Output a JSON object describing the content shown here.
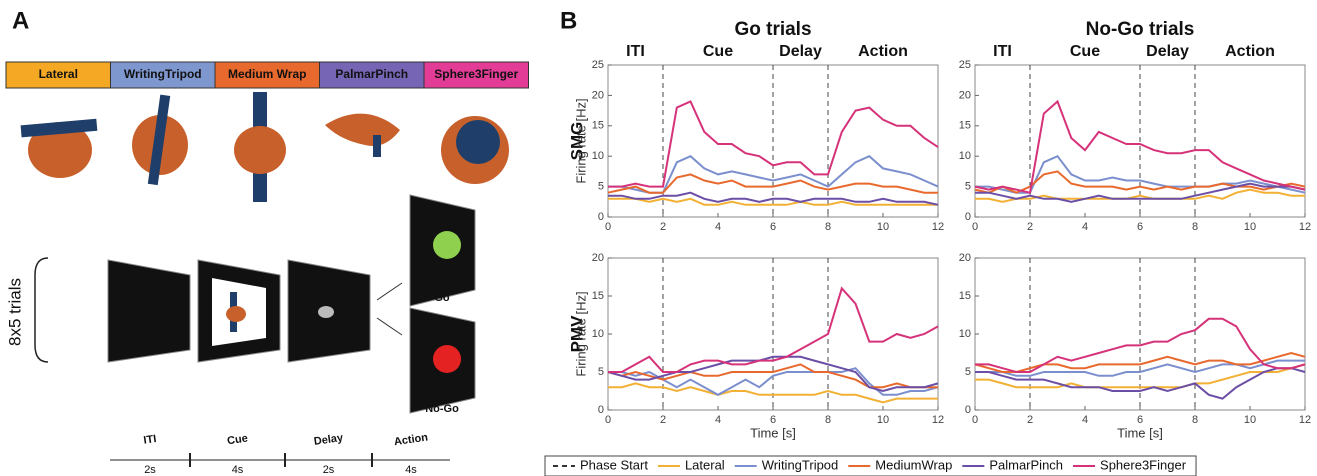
{
  "panel_a": {
    "label": "A",
    "grasps": [
      {
        "name": "Lateral",
        "color": "#f4a823"
      },
      {
        "name": "WritingTripod",
        "color": "#7f97cf"
      },
      {
        "name": "Medium Wrap",
        "color": "#e8692d"
      },
      {
        "name": "PalmarPinch",
        "color": "#7565b4"
      },
      {
        "name": "Sphere3Finger",
        "color": "#e23c96"
      }
    ],
    "trials": "8x5 trials",
    "go": "Go",
    "nogo": "No-Go",
    "timeline": [
      {
        "phase": "ITI",
        "duration": "2s"
      },
      {
        "phase": "Cue",
        "duration": "4s"
      },
      {
        "phase": "Delay",
        "duration": "2s"
      },
      {
        "phase": "Action",
        "duration": "4s"
      }
    ]
  },
  "figure": {
    "label": "B",
    "columns": [
      {
        "title": "Go trials",
        "color": "#22a04b"
      },
      {
        "title": "No-Go trials",
        "color": "#e0284b"
      }
    ],
    "rows": [
      "SMG",
      "PMV"
    ],
    "phases": [
      "ITI",
      "Cue",
      "Delay",
      "Action"
    ],
    "phase_start_label": "Phase Start"
  },
  "chart_data": [
    {
      "type": "line",
      "ylabel": "Firing rate [Hz]",
      "x": [
        0,
        0.5,
        1,
        1.5,
        2,
        2.5,
        3,
        3.5,
        4,
        4.5,
        5,
        5.5,
        6,
        6.5,
        7,
        7.5,
        8,
        8.5,
        9,
        9.5,
        10,
        10.5,
        11,
        11.5,
        12
      ],
      "xlim": [
        0,
        12
      ],
      "xticks": [
        0,
        2,
        4,
        6,
        8,
        10,
        12
      ],
      "ylim": [
        0,
        25
      ],
      "yticks": [
        0,
        5,
        10,
        15,
        20,
        25
      ],
      "phase_starts": [
        2,
        6,
        8
      ],
      "series": [
        {
          "name": "Lateral",
          "color": "#f2b134",
          "values": [
            3,
            3,
            3,
            2.5,
            3,
            2.5,
            3,
            2,
            2,
            2.5,
            2,
            2,
            2,
            2,
            2.5,
            2,
            2,
            2.5,
            2,
            2,
            2,
            2,
            2,
            2,
            2
          ]
        },
        {
          "name": "WritingTripod",
          "color": "#7b8fce",
          "values": [
            5,
            5,
            4.5,
            4,
            4,
            9,
            10,
            8,
            7,
            7.5,
            7,
            6.5,
            6,
            6.5,
            7,
            6,
            5,
            7,
            9,
            10,
            8,
            7.5,
            7,
            6,
            5
          ]
        },
        {
          "name": "MediumWrap",
          "color": "#e8692d",
          "values": [
            4,
            4.5,
            5,
            4,
            4,
            6.5,
            7,
            6,
            5.5,
            6,
            5,
            5,
            5,
            5.5,
            6,
            5,
            4.5,
            5,
            5.5,
            5.5,
            5,
            5,
            4.5,
            4,
            4
          ]
        },
        {
          "name": "PalmarPinch",
          "color": "#6b4fa6",
          "values": [
            3.5,
            3.5,
            3,
            3,
            3.5,
            3.5,
            4,
            3,
            2.5,
            3,
            3,
            2.5,
            3,
            3,
            2.5,
            3,
            3,
            3,
            2.5,
            2.5,
            3,
            2.5,
            2.5,
            2.5,
            2
          ]
        },
        {
          "name": "Sphere3Finger",
          "color": "#d6327a",
          "values": [
            5,
            5,
            5.5,
            5,
            5,
            18,
            19,
            14,
            12,
            12,
            10.5,
            10,
            8.5,
            9,
            9,
            7,
            7,
            14,
            17.5,
            18,
            16,
            15,
            15,
            13,
            11.5
          ]
        }
      ]
    },
    {
      "type": "line",
      "x": [
        0,
        0.5,
        1,
        1.5,
        2,
        2.5,
        3,
        3.5,
        4,
        4.5,
        5,
        5.5,
        6,
        6.5,
        7,
        7.5,
        8,
        8.5,
        9,
        9.5,
        10,
        10.5,
        11,
        11.5,
        12
      ],
      "xlim": [
        0,
        12
      ],
      "xticks": [
        0,
        2,
        4,
        6,
        8,
        10,
        12
      ],
      "ylim": [
        0,
        25
      ],
      "yticks": [
        0,
        5,
        10,
        15,
        20,
        25
      ],
      "phase_starts": [
        2,
        6,
        8
      ],
      "series": [
        {
          "name": "Lateral",
          "color": "#f2b134",
          "values": [
            3,
            3,
            2.5,
            3,
            3,
            3.5,
            3,
            3,
            3,
            3,
            3,
            3,
            3.5,
            3,
            3,
            3,
            3,
            3.5,
            3,
            4,
            4.5,
            4,
            4,
            3.5,
            3.5
          ]
        },
        {
          "name": "WritingTripod",
          "color": "#7b8fce",
          "values": [
            5,
            5,
            4.5,
            4,
            4,
            9,
            10,
            7,
            6,
            6,
            6.5,
            6,
            6,
            5.5,
            5,
            5,
            5,
            5,
            5.5,
            5.5,
            6,
            5.5,
            5,
            4.5,
            4
          ]
        },
        {
          "name": "MediumWrap",
          "color": "#e8692d",
          "values": [
            4.5,
            4,
            5,
            4,
            5,
            7,
            7.5,
            5.5,
            5,
            5,
            5,
            4.5,
            5,
            4.5,
            5,
            4.5,
            5,
            5,
            5.5,
            5,
            5,
            4.5,
            5,
            5.5,
            5
          ]
        },
        {
          "name": "PalmarPinch",
          "color": "#6b4fa6",
          "values": [
            4,
            4,
            3.5,
            3,
            3.5,
            3,
            3,
            2.5,
            3,
            3.5,
            3,
            3,
            3,
            3,
            3,
            3,
            3.5,
            4,
            4.5,
            5,
            5.5,
            5,
            5,
            5,
            4.5
          ]
        },
        {
          "name": "Sphere3Finger",
          "color": "#d6327a",
          "values": [
            5,
            4.5,
            5,
            4.5,
            4,
            17,
            19,
            13,
            11,
            14,
            13,
            12,
            12,
            11,
            10.5,
            10.5,
            11,
            11,
            9,
            8,
            7,
            6,
            5.5,
            5,
            4.5
          ]
        }
      ]
    },
    {
      "type": "line",
      "ylabel": "Firing rate [Hz]",
      "xlabel": "Time [s]",
      "x": [
        0,
        0.5,
        1,
        1.5,
        2,
        2.5,
        3,
        3.5,
        4,
        4.5,
        5,
        5.5,
        6,
        6.5,
        7,
        7.5,
        8,
        8.5,
        9,
        9.5,
        10,
        10.5,
        11,
        11.5,
        12
      ],
      "xlim": [
        0,
        12
      ],
      "xticks": [
        0,
        2,
        4,
        6,
        8,
        10,
        12
      ],
      "ylim": [
        0,
        20
      ],
      "yticks": [
        0,
        5,
        10,
        15,
        20
      ],
      "phase_starts": [
        2,
        6,
        8
      ],
      "series": [
        {
          "name": "Lateral",
          "color": "#f2b134",
          "values": [
            3,
            3,
            3.5,
            3,
            3,
            2.5,
            3,
            2.5,
            2,
            2.5,
            2.5,
            2,
            2,
            2,
            2,
            2,
            2.5,
            2,
            2,
            1.5,
            1,
            1.5,
            1.5,
            1.5,
            1.5
          ]
        },
        {
          "name": "WritingTripod",
          "color": "#7b8fce",
          "values": [
            5,
            5,
            4.5,
            5,
            4,
            3,
            4,
            3,
            2,
            3,
            4,
            3,
            4.5,
            5,
            5,
            5,
            5,
            5,
            5.5,
            3.5,
            2,
            2,
            2.5,
            2.5,
            3
          ]
        },
        {
          "name": "MediumWrap",
          "color": "#e8692d",
          "values": [
            5,
            4.5,
            5,
            4.5,
            4,
            4.5,
            5,
            4.5,
            4.5,
            5,
            5,
            5,
            5,
            5.5,
            6,
            5,
            5,
            4.5,
            4,
            3,
            3,
            3.5,
            3,
            3,
            3
          ]
        },
        {
          "name": "PalmarPinch",
          "color": "#6b4fa6",
          "values": [
            5,
            4.5,
            4,
            4,
            4.5,
            5,
            5,
            5.5,
            6,
            6.5,
            6.5,
            6.5,
            7,
            7,
            7,
            6.5,
            6,
            5.5,
            5,
            3,
            2.5,
            3,
            3,
            3,
            3.5
          ]
        },
        {
          "name": "Sphere3Finger",
          "color": "#d6327a",
          "values": [
            5,
            5,
            6,
            7,
            5,
            5,
            6,
            6.5,
            6.5,
            6,
            6,
            6.5,
            6.5,
            7,
            8,
            9,
            10,
            16,
            14,
            9,
            9,
            10,
            9.5,
            10,
            11
          ]
        }
      ]
    },
    {
      "type": "line",
      "xlabel": "Time [s]",
      "x": [
        0,
        0.5,
        1,
        1.5,
        2,
        2.5,
        3,
        3.5,
        4,
        4.5,
        5,
        5.5,
        6,
        6.5,
        7,
        7.5,
        8,
        8.5,
        9,
        9.5,
        10,
        10.5,
        11,
        11.5,
        12
      ],
      "xlim": [
        0,
        12
      ],
      "xticks": [
        0,
        2,
        4,
        6,
        8,
        10,
        12
      ],
      "ylim": [
        0,
        20
      ],
      "yticks": [
        0,
        5,
        10,
        15,
        20
      ],
      "phase_starts": [
        2,
        6,
        8
      ],
      "series": [
        {
          "name": "Lateral",
          "color": "#f2b134",
          "values": [
            4,
            4,
            3.5,
            3,
            3,
            3,
            3,
            3.5,
            3,
            3,
            3,
            3,
            3,
            3,
            3,
            3,
            3.5,
            3.5,
            4,
            4.5,
            5,
            5,
            5,
            5.5,
            6
          ]
        },
        {
          "name": "WritingTripod",
          "color": "#7b8fce",
          "values": [
            5,
            5,
            5,
            4.5,
            4.5,
            5,
            5,
            5,
            5,
            4.5,
            4.5,
            5,
            5,
            5.5,
            6,
            5.5,
            5,
            5.5,
            6,
            6,
            5.5,
            6,
            6.5,
            6.5,
            6.5
          ]
        },
        {
          "name": "MediumWrap",
          "color": "#e8692d",
          "values": [
            6,
            5.5,
            5,
            5,
            5.5,
            6,
            6,
            5.5,
            5.5,
            6,
            6,
            6,
            6,
            6.5,
            7,
            6.5,
            6,
            6.5,
            6.5,
            6,
            6,
            6.5,
            7,
            7.5,
            7
          ]
        },
        {
          "name": "PalmarPinch",
          "color": "#6b4fa6",
          "values": [
            5,
            5,
            4.5,
            4,
            4,
            4,
            3.5,
            3,
            3,
            3,
            2.5,
            2.5,
            2.5,
            3,
            2.5,
            3,
            3.5,
            2,
            1.5,
            3,
            4,
            5,
            5.5,
            5.5,
            5
          ]
        },
        {
          "name": "Sphere3Finger",
          "color": "#d6327a",
          "values": [
            6,
            6,
            5.5,
            5,
            5,
            6,
            7,
            6.5,
            7,
            7.5,
            8,
            8.5,
            8.5,
            9,
            9,
            10,
            10.5,
            12,
            12,
            11,
            8,
            6,
            5.5,
            5.5,
            6
          ]
        }
      ]
    }
  ]
}
